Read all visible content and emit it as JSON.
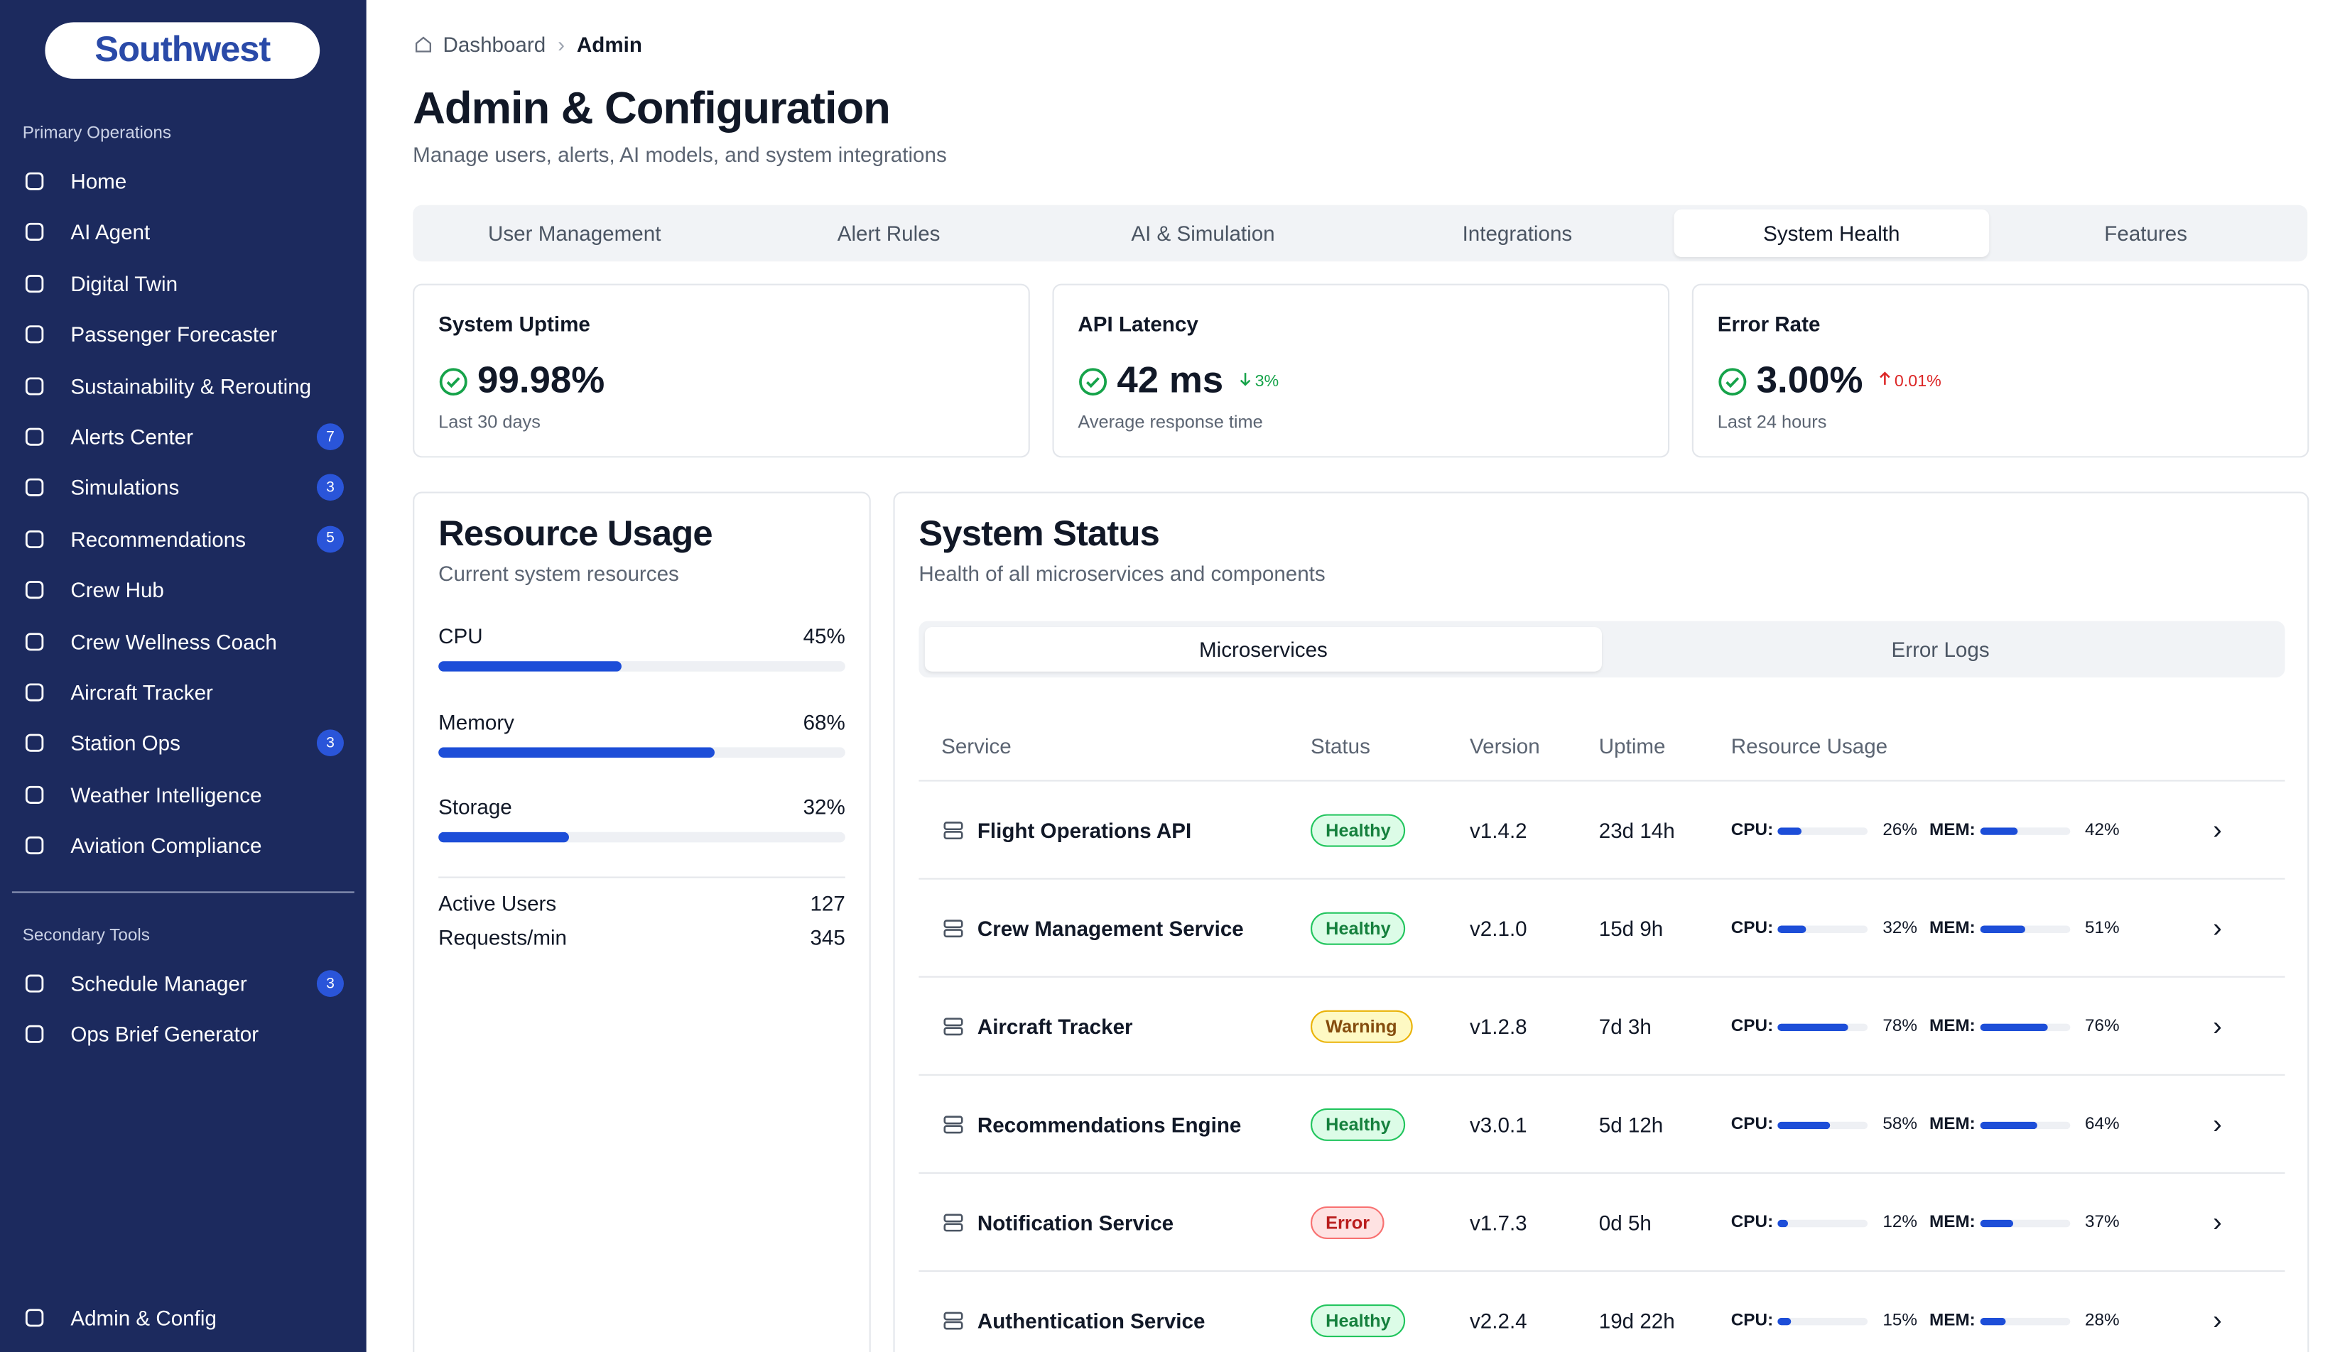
{
  "sidebar": {
    "logo": "Southwest",
    "sections": [
      {
        "title": "Primary Operations",
        "items": [
          {
            "label": "Home"
          },
          {
            "label": "AI Agent"
          },
          {
            "label": "Digital Twin"
          },
          {
            "label": "Passenger Forecaster"
          },
          {
            "label": "Sustainability & Rerouting"
          },
          {
            "label": "Alerts Center",
            "badge": "7"
          },
          {
            "label": "Simulations",
            "badge": "3"
          },
          {
            "label": "Recommendations",
            "badge": "5"
          },
          {
            "label": "Crew Hub"
          },
          {
            "label": "Crew Wellness Coach"
          },
          {
            "label": "Aircraft Tracker"
          },
          {
            "label": "Station Ops",
            "badge": "3"
          },
          {
            "label": "Weather Intelligence"
          },
          {
            "label": "Aviation Compliance"
          }
        ]
      },
      {
        "title": "Secondary Tools",
        "items": [
          {
            "label": "Schedule Manager",
            "badge": "3"
          },
          {
            "label": "Ops Brief Generator"
          }
        ]
      }
    ],
    "footer": "Admin & Config"
  },
  "breadcrumb": [
    "Dashboard",
    "Admin"
  ],
  "header": {
    "title": "Admin & Configuration",
    "subtitle": "Manage users, alerts, AI models, and system integrations"
  },
  "tabs": [
    "User Management",
    "Alert Rules",
    "AI & Simulation",
    "Integrations",
    "System Health",
    "Features"
  ],
  "active_tab": 4,
  "metrics": [
    {
      "title": "System Uptime",
      "value": "99.98%",
      "note": "Last 30 days"
    },
    {
      "title": "API Latency",
      "value": "42 ms",
      "change": "3%",
      "direction": "down",
      "note": "Average response time"
    },
    {
      "title": "Error Rate",
      "value": "3.00%",
      "change": "0.01%",
      "direction": "up",
      "note": "Last 24 hours"
    }
  ],
  "resource_usage": {
    "title": "Resource Usage",
    "subtitle": "Current system resources",
    "items": [
      {
        "name": "CPU",
        "value": 45,
        "label": "45%"
      },
      {
        "name": "Memory",
        "value": 68,
        "label": "68%"
      },
      {
        "name": "Storage",
        "value": 32,
        "label": "32%"
      }
    ],
    "stats": [
      {
        "name": "Active Users",
        "value": "127"
      },
      {
        "name": "Requests/min",
        "value": "345"
      }
    ]
  },
  "system_status": {
    "title": "System Status",
    "subtitle": "Health of all microservices and components",
    "tabs": [
      "Microservices",
      "Error Logs"
    ],
    "active_tab": 0,
    "columns": [
      "Service",
      "Status",
      "Version",
      "Uptime",
      "Resource Usage"
    ],
    "cpu_label": "CPU:",
    "mem_label": "MEM:",
    "rows": [
      {
        "service": "Flight Operations API",
        "status": "Healthy",
        "version": "v1.4.2",
        "uptime": "23d 14h",
        "cpu": {
          "value": 26,
          "label": "26%"
        },
        "mem": {
          "value": 42,
          "label": "42%"
        }
      },
      {
        "service": "Crew Management Service",
        "status": "Healthy",
        "version": "v2.1.0",
        "uptime": "15d 9h",
        "cpu": {
          "value": 32,
          "label": "32%"
        },
        "mem": {
          "value": 51,
          "label": "51%"
        }
      },
      {
        "service": "Aircraft Tracker",
        "status": "Warning",
        "version": "v1.2.8",
        "uptime": "7d 3h",
        "cpu": {
          "value": 78,
          "label": "78%"
        },
        "mem": {
          "value": 76,
          "label": "76%"
        }
      },
      {
        "service": "Recommendations Engine",
        "status": "Healthy",
        "version": "v3.0.1",
        "uptime": "5d 12h",
        "cpu": {
          "value": 58,
          "label": "58%"
        },
        "mem": {
          "value": 64,
          "label": "64%"
        }
      },
      {
        "service": "Notification Service",
        "status": "Error",
        "version": "v1.7.3",
        "uptime": "0d 5h",
        "cpu": {
          "value": 12,
          "label": "12%"
        },
        "mem": {
          "value": 37,
          "label": "37%"
        }
      },
      {
        "service": "Authentication Service",
        "status": "Healthy",
        "version": "v2.2.4",
        "uptime": "19d 22h",
        "cpu": {
          "value": 15,
          "label": "15%"
        },
        "mem": {
          "value": 28,
          "label": "28%"
        }
      }
    ]
  }
}
